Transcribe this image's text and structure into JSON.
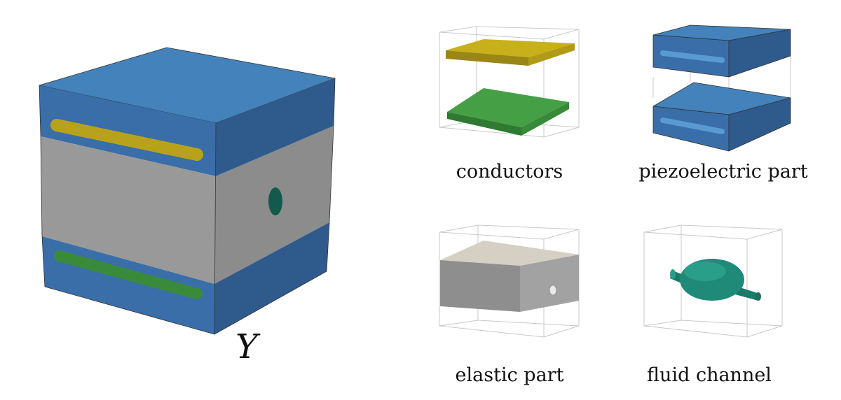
{
  "main_cell": {
    "label": "Y"
  },
  "panels": [
    {
      "id": "conductors",
      "label": "conductors"
    },
    {
      "id": "piezoelectric",
      "label": "piezoelectric part"
    },
    {
      "id": "elastic",
      "label": "elastic part"
    },
    {
      "id": "fluid",
      "label": "fluid channel"
    }
  ],
  "colors": {
    "piezo_top": "#4382ba",
    "piezo_front": "#3a6ea8",
    "piezo_right": "#2f5a8c",
    "elastic_front": "#969696",
    "elastic_right": "#8a8a8a",
    "elastic_top": "#d6cfc4",
    "conductor_top": "#c8b01a",
    "conductor_bottom": "#3f9a40",
    "fluid": "#1f8a78",
    "wire": "#c8c8c8"
  }
}
